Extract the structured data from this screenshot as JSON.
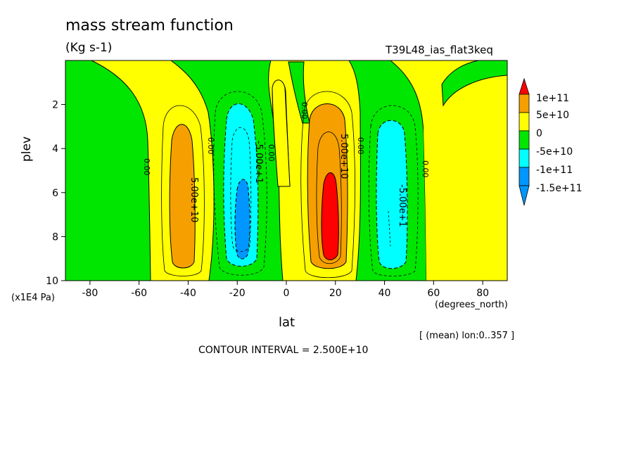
{
  "title": "mass stream function",
  "units": "(Kg s-1)",
  "run_name": "T39L48_ias_flat3keq",
  "y_unit": "(x1E4 Pa)",
  "x_unit": "(degrees_north)",
  "mean_note": "[ (mean) lon:0..357 ]",
  "contour_interval": "CONTOUR INTERVAL = 2.500E+10",
  "colors": {
    "red": "#ff0000",
    "orange": "#f5a000",
    "yellow": "#ffff00",
    "green": "#00e600",
    "cyan": "#00ffff",
    "blue": "#0096ff"
  },
  "chart_data": {
    "type": "contour",
    "xlabel": "lat",
    "ylabel": "plev",
    "xlim": [
      -90,
      90
    ],
    "ylim": [
      10,
      0
    ],
    "xticks": [
      -80,
      -60,
      -40,
      -20,
      0,
      20,
      40,
      60,
      80
    ],
    "yticks": [
      2,
      4,
      6,
      8,
      10
    ],
    "legend": {
      "placement": "right",
      "labels": [
        "1e+11",
        "5e+10",
        "0",
        "-5e+10",
        "-1e+11",
        "-1.5e+11"
      ],
      "bins": [
        {
          "color": "red",
          "range": [
            100000000000.0,
            null
          ]
        },
        {
          "color": "orange",
          "range": [
            50000000000.0,
            100000000000.0
          ]
        },
        {
          "color": "yellow",
          "range": [
            0,
            50000000000.0
          ]
        },
        {
          "color": "green",
          "range": [
            -50000000000.0,
            0
          ]
        },
        {
          "color": "cyan",
          "range": [
            -100000000000.0,
            -50000000000.0
          ]
        },
        {
          "color": "blue",
          "range": [
            -150000000000.0,
            -100000000000.0
          ]
        }
      ]
    },
    "contour_labels": [
      "5.00e+10",
      "-5.00e+1",
      "5.00e+10",
      "-5.00e+1",
      "0.00",
      "0.00",
      "0.00",
      "0.00",
      "0.00",
      "0.00"
    ],
    "cells": [
      {
        "name": "southern-ferrel-cell",
        "sign": "positive",
        "lat_range": [
          -47,
          -32
        ],
        "plev_range": [
          2.9,
          9.4
        ],
        "peak": 75000000000.0
      },
      {
        "name": "southern-hadley-cell",
        "sign": "negative",
        "lat_range": [
          -22,
          -10
        ],
        "plev_range": [
          1.5,
          9.3
        ],
        "peak": -125000000000.0
      },
      {
        "name": "northern-hadley-cell",
        "sign": "positive",
        "lat_range": [
          10,
          28
        ],
        "plev_range": [
          1.2,
          9.4
        ],
        "peak": 125000000000.0
      },
      {
        "name": "northern-ferrel-cell",
        "sign": "negative",
        "lat_range": [
          37,
          48
        ],
        "plev_range": [
          2.8,
          9.2
        ],
        "peak": -75000000000.0
      }
    ]
  }
}
